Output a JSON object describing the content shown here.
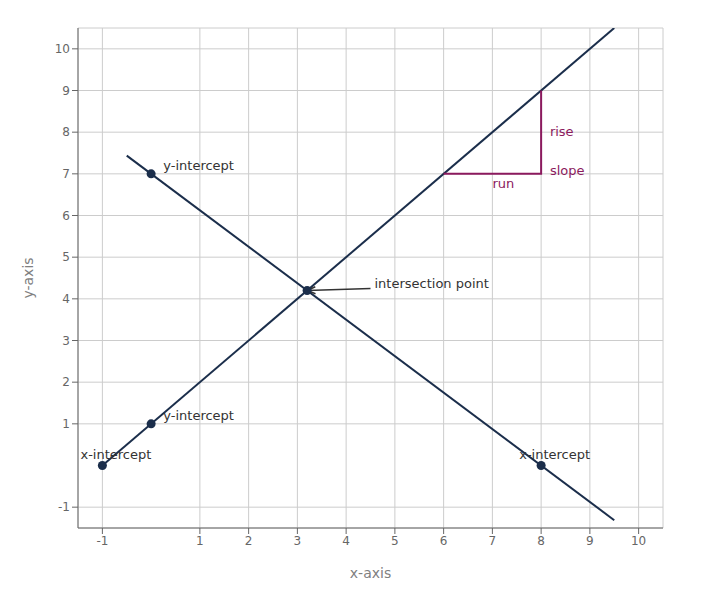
{
  "chart_data": {
    "type": "line",
    "xlabel": "x-axis",
    "ylabel": "y-axis",
    "xlim": [
      -1.5,
      10.5
    ],
    "ylim": [
      -1.5,
      10.5
    ],
    "xticks": [
      -1,
      1,
      2,
      3,
      4,
      5,
      6,
      7,
      8,
      9,
      10
    ],
    "yticks": [
      -1,
      1,
      2,
      3,
      4,
      5,
      6,
      7,
      8,
      9,
      10
    ],
    "grid": true,
    "series": [
      {
        "x": [
          -1.0,
          9.5
        ],
        "values": [
          0.0,
          10.5
        ],
        "color": "#1b2e4b"
      },
      {
        "x": [
          -0.5,
          9.5
        ],
        "values": [
          7.4375,
          -1.3125
        ],
        "color": "#1b2e4b"
      },
      {
        "type": "scatter",
        "marker": "o",
        "x": [
          -1.0,
          0.0,
          8.0,
          0.0,
          3.2
        ],
        "values": [
          0.0,
          1.0,
          0.0,
          7.0,
          4.2
        ],
        "color": "#1b2e4b"
      },
      {
        "x": [
          6.0,
          8.0,
          8.0
        ],
        "values": [
          7.0,
          7.0,
          9.0
        ],
        "color": "#8b1a5e"
      }
    ],
    "annotations": [
      {
        "text": "run",
        "x": 7.0,
        "y": 6.75,
        "color": "#8b1a5e"
      },
      {
        "text": "rise",
        "x": 8.18,
        "y": 8.0,
        "color": "#8b1a5e"
      },
      {
        "text": "slope",
        "x": 8.18,
        "y": 7.05,
        "color": "#8b1a5e"
      },
      {
        "text": "y-intercept",
        "x": 0.25,
        "y": 7.1
      },
      {
        "text": "y-intercept",
        "x": 0.25,
        "y": 1.1
      },
      {
        "text": "x-intercept",
        "x": -1.45,
        "y": 0.15
      },
      {
        "text": "x-intercept",
        "x": 7.55,
        "y": 0.15
      },
      {
        "text": "intersection point",
        "x": 4.5,
        "y": 4.25,
        "xy": [
          3.2,
          4.2
        ]
      }
    ]
  }
}
